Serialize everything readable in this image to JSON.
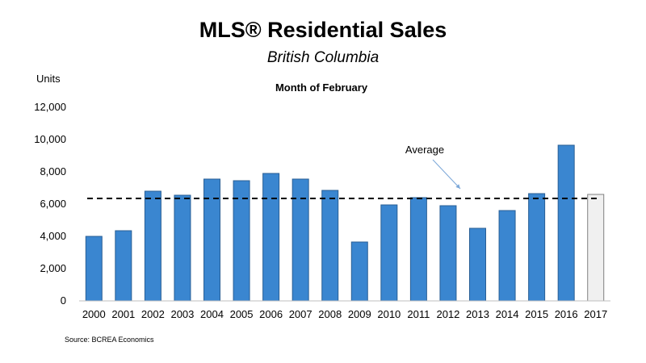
{
  "chart_data": {
    "type": "bar",
    "title": "MLS® Residential Sales",
    "subtitle": "British Columbia",
    "chart_label": "Month of February",
    "ylabel": "Units",
    "xlabel": "",
    "ylim": [
      0,
      12000
    ],
    "yticks": [
      "0",
      "2,000",
      "4,000",
      "6,000",
      "8,000",
      "10,000",
      "12,000"
    ],
    "ytick_values": [
      0,
      2000,
      4000,
      6000,
      8000,
      10000,
      12000
    ],
    "categories": [
      "2000",
      "2001",
      "2002",
      "2003",
      "2004",
      "2005",
      "2006",
      "2007",
      "2008",
      "2009",
      "2010",
      "2011",
      "2012",
      "2013",
      "2014",
      "2015",
      "2016",
      "2017"
    ],
    "values": [
      4000,
      4350,
      6800,
      6550,
      7550,
      7450,
      7900,
      7550,
      6850,
      3650,
      5950,
      6400,
      5900,
      4500,
      5600,
      6650,
      9650,
      6600
    ],
    "highlight_category": "2017",
    "average": 6350,
    "average_label": "Average",
    "grid": false,
    "legend": "none",
    "colors": {
      "bar": "#3a86d0",
      "bar_border": "#2a5f95",
      "highlight_bar": "#f0f0f0",
      "highlight_border": "#808080",
      "average_line": "#000000",
      "arrow": "#7ba7d8"
    },
    "source": "Source: BCREA Economics"
  }
}
